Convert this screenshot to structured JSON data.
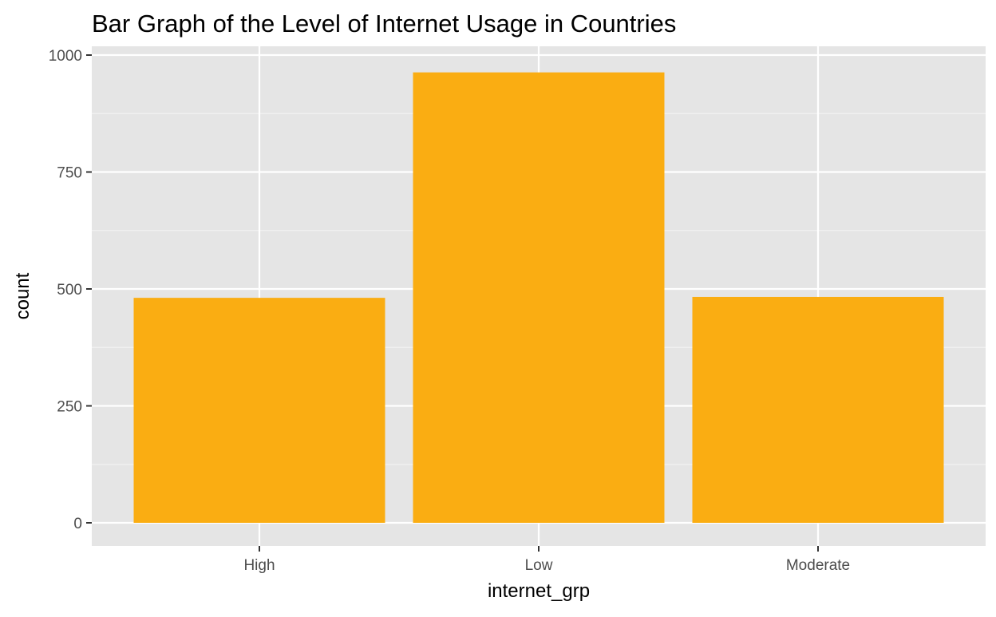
{
  "chart_data": {
    "type": "bar",
    "title": "Bar Graph of the Level of Internet Usage in Countries",
    "xlabel": "internet_grp",
    "ylabel": "count",
    "categories": [
      "High",
      "Low",
      "Moderate"
    ],
    "values": [
      481,
      963,
      483
    ],
    "ylim": [
      0,
      1010
    ],
    "yticks": [
      0,
      250,
      500,
      750,
      1000
    ],
    "ytick_labels": [
      "0",
      "250",
      "500",
      "750",
      "1000"
    ],
    "grid": true,
    "legend": "none",
    "colors": {
      "bar": "#FAAD12",
      "panel_background": "#E5E5E5",
      "grid_major": "#FFFFFF",
      "grid_minor": "#F2F2F2",
      "axis_tick": "#333333"
    }
  }
}
